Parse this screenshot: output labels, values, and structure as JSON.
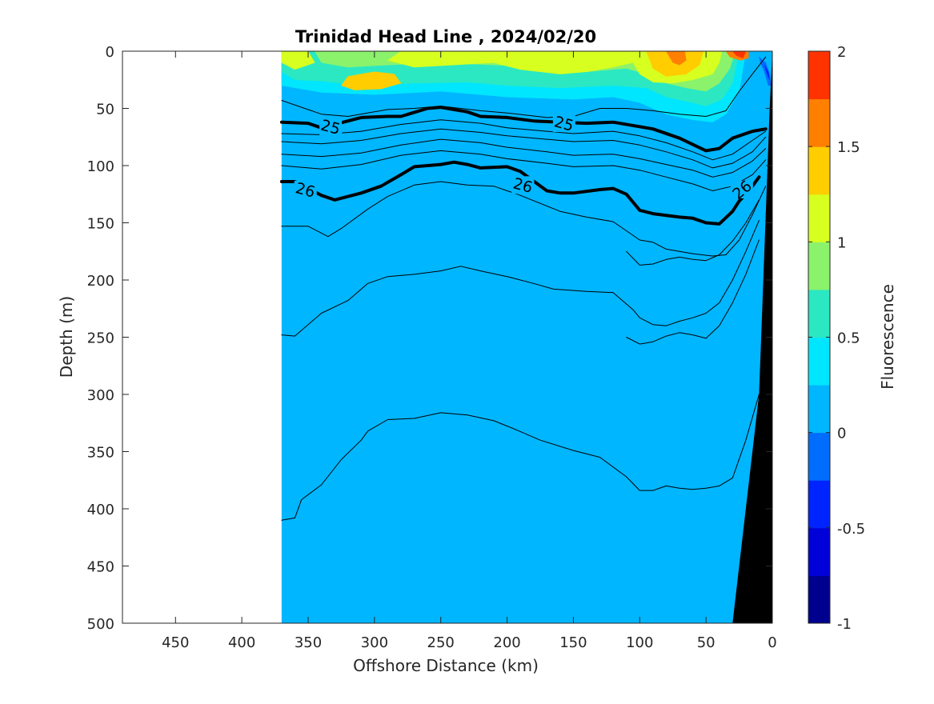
{
  "chart_data": {
    "type": "contour",
    "title": "Trinidad Head Line , 2024/02/20",
    "xlabel": "Offshore Distance (km)",
    "ylabel": "Depth (m)",
    "xlim": [
      490,
      0
    ],
    "ylim": [
      0,
      500
    ],
    "x_ticks": [
      450,
      400,
      350,
      300,
      250,
      200,
      150,
      100,
      50,
      0
    ],
    "y_ticks": [
      0,
      50,
      100,
      150,
      200,
      250,
      300,
      350,
      400,
      450,
      500
    ],
    "colorbar": {
      "label": "Fluorescence",
      "range": [
        -1,
        2
      ],
      "levels": [
        -1,
        -0.75,
        -0.5,
        -0.25,
        0,
        0.25,
        0.5,
        0.75,
        1,
        1.25,
        1.5,
        1.75,
        2
      ],
      "tick_labels": [
        "2",
        "1.5",
        "1",
        "0.5",
        "0",
        "-0.5",
        "-1"
      ],
      "tick_values": [
        2,
        1.5,
        1,
        0.5,
        0,
        -0.5,
        -1
      ],
      "colors": [
        "#00008f",
        "#0000d9",
        "#0024ff",
        "#006dff",
        "#00b6ff",
        "#00e6ff",
        "#2be8c2",
        "#8bf26b",
        "#d7ff1f",
        "#ffcd00",
        "#ff7f00",
        "#ff3300",
        "#c80000"
      ]
    },
    "data_extent_km": 370,
    "contour_labels": [
      {
        "text": "25",
        "x": 333,
        "depth": 66
      },
      {
        "text": "25",
        "x": 157,
        "depth": 63
      },
      {
        "text": "26",
        "x": 352,
        "depth": 121
      },
      {
        "text": "26",
        "x": 188,
        "depth": 117
      },
      {
        "text": "26",
        "x": 23,
        "depth": 121
      }
    ],
    "isopycnals": [
      {
        "level": "",
        "bold": false,
        "points": [
          [
            370,
            43
          ],
          [
            340,
            55
          ],
          [
            320,
            57
          ],
          [
            290,
            51
          ],
          [
            270,
            50
          ],
          [
            250,
            48
          ],
          [
            220,
            52
          ],
          [
            200,
            54
          ],
          [
            170,
            58
          ],
          [
            150,
            57
          ],
          [
            130,
            50
          ],
          [
            110,
            50
          ],
          [
            90,
            52
          ],
          [
            70,
            55
          ],
          [
            50,
            57
          ],
          [
            35,
            52
          ],
          [
            25,
            35
          ],
          [
            15,
            20
          ],
          [
            5,
            5
          ]
        ]
      },
      {
        "level": "25",
        "bold": true,
        "points": [
          [
            370,
            62
          ],
          [
            350,
            63
          ],
          [
            340,
            67
          ],
          [
            310,
            58
          ],
          [
            290,
            57
          ],
          [
            280,
            57
          ],
          [
            260,
            50
          ],
          [
            250,
            49
          ],
          [
            230,
            53
          ],
          [
            220,
            57
          ],
          [
            200,
            58
          ],
          [
            180,
            61
          ],
          [
            160,
            62
          ],
          [
            140,
            63
          ],
          [
            120,
            62
          ],
          [
            90,
            68
          ],
          [
            70,
            76
          ],
          [
            50,
            87
          ],
          [
            40,
            85
          ],
          [
            30,
            76
          ],
          [
            15,
            70
          ],
          [
            5,
            68
          ]
        ]
      },
      {
        "level": "",
        "bold": false,
        "points": [
          [
            370,
            72
          ],
          [
            340,
            73
          ],
          [
            310,
            70
          ],
          [
            280,
            64
          ],
          [
            250,
            60
          ],
          [
            220,
            63
          ],
          [
            200,
            67
          ],
          [
            170,
            70
          ],
          [
            150,
            72
          ],
          [
            120,
            70
          ],
          [
            100,
            74
          ],
          [
            80,
            80
          ],
          [
            60,
            88
          ],
          [
            45,
            95
          ],
          [
            30,
            90
          ],
          [
            15,
            78
          ],
          [
            5,
            70
          ]
        ]
      },
      {
        "level": "",
        "bold": false,
        "points": [
          [
            370,
            79
          ],
          [
            340,
            81
          ],
          [
            310,
            78
          ],
          [
            280,
            72
          ],
          [
            250,
            68
          ],
          [
            220,
            71
          ],
          [
            200,
            74
          ],
          [
            170,
            77
          ],
          [
            150,
            79
          ],
          [
            120,
            78
          ],
          [
            100,
            82
          ],
          [
            80,
            88
          ],
          [
            60,
            95
          ],
          [
            45,
            102
          ],
          [
            30,
            98
          ],
          [
            15,
            88
          ],
          [
            5,
            75
          ]
        ]
      },
      {
        "level": "",
        "bold": false,
        "points": [
          [
            370,
            90
          ],
          [
            340,
            92
          ],
          [
            310,
            89
          ],
          [
            280,
            82
          ],
          [
            250,
            77
          ],
          [
            220,
            80
          ],
          [
            200,
            84
          ],
          [
            170,
            88
          ],
          [
            150,
            91
          ],
          [
            120,
            90
          ],
          [
            100,
            94
          ],
          [
            80,
            99
          ],
          [
            60,
            104
          ],
          [
            45,
            110
          ],
          [
            30,
            106
          ],
          [
            15,
            96
          ],
          [
            5,
            85
          ]
        ]
      },
      {
        "level": "",
        "bold": false,
        "points": [
          [
            370,
            100
          ],
          [
            340,
            103
          ],
          [
            310,
            99
          ],
          [
            280,
            91
          ],
          [
            250,
            87
          ],
          [
            220,
            90
          ],
          [
            200,
            94
          ],
          [
            170,
            98
          ],
          [
            150,
            101
          ],
          [
            120,
            100
          ],
          [
            100,
            104
          ],
          [
            80,
            110
          ],
          [
            60,
            116
          ],
          [
            45,
            122
          ],
          [
            30,
            118
          ],
          [
            15,
            108
          ],
          [
            5,
            95
          ]
        ]
      },
      {
        "level": "26",
        "bold": true,
        "points": [
          [
            370,
            114
          ],
          [
            360,
            114
          ],
          [
            340,
            126
          ],
          [
            330,
            130
          ],
          [
            310,
            124
          ],
          [
            295,
            118
          ],
          [
            280,
            108
          ],
          [
            270,
            101
          ],
          [
            250,
            99
          ],
          [
            240,
            97
          ],
          [
            230,
            99
          ],
          [
            220,
            102
          ],
          [
            200,
            101
          ],
          [
            190,
            105
          ],
          [
            170,
            122
          ],
          [
            160,
            124
          ],
          [
            150,
            124
          ],
          [
            130,
            121
          ],
          [
            120,
            120
          ],
          [
            110,
            125
          ],
          [
            100,
            139
          ],
          [
            90,
            142
          ],
          [
            70,
            145
          ],
          [
            60,
            146
          ],
          [
            50,
            150
          ],
          [
            40,
            151
          ],
          [
            30,
            140
          ],
          [
            25,
            131
          ],
          [
            20,
            125
          ],
          [
            15,
            118
          ],
          [
            10,
            110
          ]
        ]
      },
      {
        "level": "",
        "bold": false,
        "points": [
          [
            370,
            153
          ],
          [
            350,
            153
          ],
          [
            335,
            162
          ],
          [
            325,
            155
          ],
          [
            305,
            138
          ],
          [
            290,
            127
          ],
          [
            270,
            117
          ],
          [
            250,
            114
          ],
          [
            230,
            117
          ],
          [
            210,
            118
          ],
          [
            190,
            126
          ],
          [
            160,
            140
          ],
          [
            140,
            145
          ],
          [
            120,
            149
          ],
          [
            110,
            157
          ],
          [
            100,
            165
          ],
          [
            90,
            167
          ],
          [
            80,
            173
          ],
          [
            60,
            177
          ],
          [
            45,
            179
          ],
          [
            35,
            178
          ],
          [
            25,
            165
          ],
          [
            15,
            143
          ],
          [
            5,
            118
          ]
        ]
      },
      {
        "level": "",
        "bold": false,
        "points": [
          [
            370,
            248
          ],
          [
            360,
            249
          ],
          [
            340,
            229
          ],
          [
            320,
            218
          ],
          [
            305,
            203
          ],
          [
            290,
            197
          ],
          [
            270,
            195
          ],
          [
            250,
            192
          ],
          [
            235,
            188
          ],
          [
            220,
            192
          ],
          [
            200,
            197
          ],
          [
            180,
            203
          ],
          [
            165,
            208
          ],
          [
            140,
            210
          ],
          [
            120,
            211
          ],
          [
            105,
            226
          ],
          [
            100,
            233
          ],
          [
            90,
            239
          ],
          [
            80,
            240
          ],
          [
            70,
            236
          ],
          [
            60,
            233
          ],
          [
            50,
            229
          ],
          [
            40,
            220
          ],
          [
            30,
            200
          ],
          [
            20,
            175
          ],
          [
            10,
            148
          ]
        ]
      },
      {
        "level": "",
        "bold": false,
        "points": [
          [
            370,
            410
          ],
          [
            360,
            408
          ],
          [
            355,
            392
          ],
          [
            340,
            379
          ],
          [
            325,
            357
          ],
          [
            310,
            340
          ],
          [
            305,
            332
          ],
          [
            290,
            322
          ],
          [
            270,
            321
          ],
          [
            250,
            316
          ],
          [
            230,
            318
          ],
          [
            210,
            323
          ],
          [
            195,
            330
          ],
          [
            175,
            340
          ],
          [
            150,
            349
          ],
          [
            130,
            355
          ],
          [
            110,
            372
          ],
          [
            100,
            384
          ],
          [
            90,
            384
          ],
          [
            80,
            380
          ],
          [
            70,
            382
          ],
          [
            60,
            383
          ],
          [
            50,
            382
          ],
          [
            40,
            380
          ],
          [
            30,
            373
          ],
          [
            20,
            340
          ],
          [
            10,
            300
          ]
        ]
      },
      {
        "level": "",
        "bold": false,
        "points": [
          [
            110,
            250
          ],
          [
            100,
            256
          ],
          [
            90,
            254
          ],
          [
            80,
            249
          ],
          [
            70,
            246
          ],
          [
            60,
            248
          ],
          [
            50,
            251
          ],
          [
            40,
            240
          ],
          [
            30,
            220
          ],
          [
            20,
            195
          ],
          [
            10,
            165
          ]
        ]
      },
      {
        "level": "",
        "bold": false,
        "points": [
          [
            110,
            175
          ],
          [
            100,
            187
          ],
          [
            90,
            186
          ],
          [
            80,
            182
          ],
          [
            70,
            180
          ],
          [
            60,
            182
          ],
          [
            50,
            183
          ],
          [
            40,
            178
          ],
          [
            30,
            166
          ],
          [
            20,
            150
          ],
          [
            10,
            130
          ]
        ]
      }
    ]
  }
}
